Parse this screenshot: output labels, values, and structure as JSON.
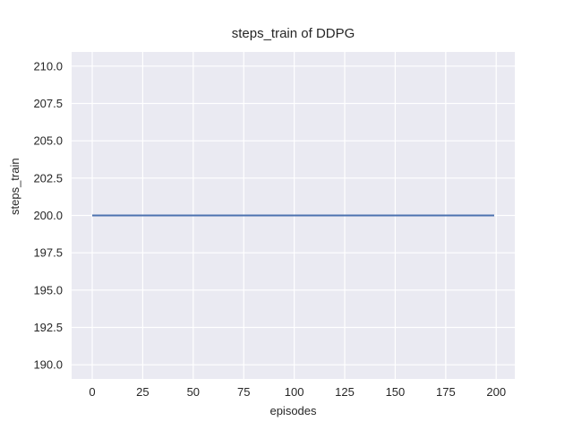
{
  "figure": {
    "background": "#ffffff"
  },
  "chart_data": {
    "type": "line",
    "title": "steps_train of DDPG",
    "xlabel": "episodes",
    "ylabel": "steps_train",
    "plot_background": "#eaeaf2",
    "grid": true,
    "grid_color": "#ffffff",
    "text_color": "#262626",
    "legend": false,
    "xlim": [
      -10.2,
      209.2
    ],
    "ylim": [
      189.05,
      210.95
    ],
    "x_ticks": {
      "values": [
        0,
        25,
        50,
        75,
        100,
        125,
        150,
        175,
        200
      ],
      "labels": [
        "0",
        "25",
        "50",
        "75",
        "100",
        "125",
        "150",
        "175",
        "200"
      ]
    },
    "y_ticks": {
      "values": [
        190.0,
        192.5,
        195.0,
        197.5,
        200.0,
        202.5,
        205.0,
        207.5,
        210.0
      ],
      "labels": [
        "190.0",
        "192.5",
        "195.0",
        "197.5",
        "200.0",
        "202.5",
        "205.0",
        "207.5",
        "210.0"
      ]
    },
    "series": [
      {
        "name": "steps_train",
        "color": "#4c72b0",
        "line_width": 2,
        "x": [
          0,
          199
        ],
        "y": [
          200,
          200
        ]
      }
    ]
  }
}
